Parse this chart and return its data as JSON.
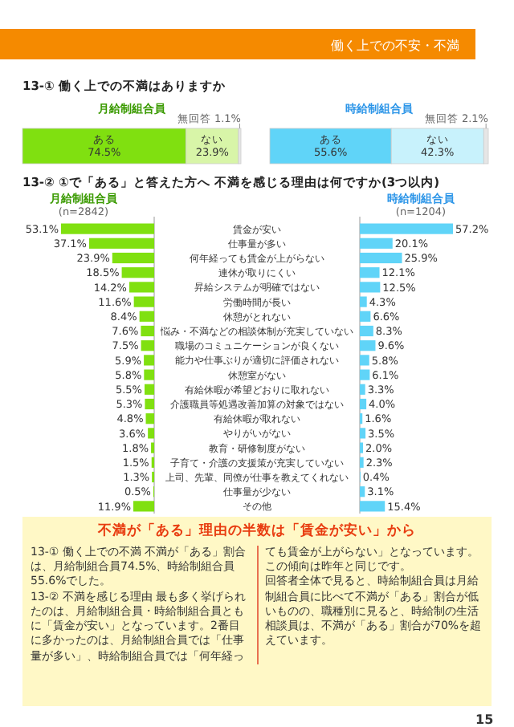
{
  "chart_data": [
    {
      "type": "other",
      "annotations": [
        "働く上での不安・不満"
      ]
    },
    {
      "type": "bar",
      "orientation": "horizontal",
      "stacked": true,
      "title": "月給制組合員",
      "annotations": [
        "13-① 働く上での不満はありますか"
      ],
      "categories": [
        null
      ],
      "series": [
        {
          "name": "ある",
          "color": "#80e010",
          "values": [
            74.5
          ],
          "value_labels": [
            "74.5%"
          ]
        },
        {
          "name": "ない",
          "color": "#d8f5a8",
          "values": [
            23.9
          ],
          "value_labels": [
            "23.9%"
          ]
        },
        {
          "name": "無回答",
          "color": "#e6e6e6",
          "values": [
            1.1
          ],
          "value_labels": [
            "1.1%"
          ]
        }
      ]
    },
    {
      "type": "bar",
      "orientation": "horizontal",
      "stacked": true,
      "title": "時給制組合員",
      "categories": [
        null
      ],
      "series": [
        {
          "name": "ある",
          "color": "#60d4f8",
          "values": [
            55.6
          ],
          "value_labels": [
            "55.6%"
          ]
        },
        {
          "name": "ない",
          "color": "#c8f2fc",
          "values": [
            42.3
          ],
          "value_labels": [
            "42.3%"
          ]
        },
        {
          "name": "無回答",
          "color": "#e6e6e6",
          "values": [
            2.1
          ],
          "value_labels": [
            "2.1%"
          ]
        }
      ]
    },
    {
      "type": "bar",
      "orientation": "horizontal",
      "title": "月給制組合員",
      "subtitle": "(n=2842)",
      "annotations": [
        "13-② ①で「ある」と答えた方へ 不満を感じる理由は何ですか(3つ以内)"
      ],
      "categories": [
        "賃金が安い",
        "仕事量が多い",
        "何年経っても賃金が上がらない",
        "連休が取りにくい",
        "昇給システムが明確ではない",
        "労働時間が長い",
        "休憩がとれない",
        "悩み・不満などの相談体制が充実していない",
        "職場のコミュニケーションが良くない",
        "能力や仕事ぶりが適切に評価されない",
        "休憩室がない",
        "有給休暇が希望どおりに取れない",
        "介護職員等処遇改善加算の対象ではない",
        "有給休暇が取れない",
        "やりがいがない",
        "教育・研修制度がない",
        "子育て・介護の支援策が充実していない",
        "上司、先輩、同僚が仕事を教えてくれない",
        "仕事量が少ない",
        "その他"
      ],
      "color": "#80e010",
      "values": [
        53.1,
        37.1,
        23.9,
        18.5,
        14.2,
        11.6,
        8.4,
        7.6,
        7.5,
        5.9,
        5.8,
        5.5,
        5.3,
        4.8,
        3.6,
        1.8,
        1.5,
        1.3,
        0.5,
        11.9
      ],
      "value_labels": [
        "53.1%",
        "37.1%",
        "23.9%",
        "18.5%",
        "14.2%",
        "11.6%",
        "8.4%",
        "7.6%",
        "7.5%",
        "5.9%",
        "5.8%",
        "5.5%",
        "5.3%",
        "4.8%",
        "3.6%",
        "1.8%",
        "1.5%",
        "1.3%",
        "0.5%",
        "11.9%"
      ]
    },
    {
      "type": "bar",
      "orientation": "horizontal",
      "title": "時給制組合員",
      "subtitle": "(n=1204)",
      "color": "#60d4f8",
      "values": [
        57.2,
        20.1,
        25.9,
        12.1,
        12.5,
        4.3,
        6.6,
        8.3,
        9.6,
        5.8,
        6.1,
        3.3,
        4.0,
        1.6,
        3.5,
        2.0,
        2.3,
        0.4,
        3.1,
        15.4
      ],
      "value_labels": [
        "57.2%",
        "20.1%",
        "25.9%",
        "12.1%",
        "12.5%",
        "4.3%",
        "6.6%",
        "8.3%",
        "9.6%",
        "5.8%",
        "6.1%",
        "3.3%",
        "4.0%",
        "1.6%",
        "3.5%",
        "2.0%",
        "2.3%",
        "0.4%",
        "3.1%",
        "15.4%"
      ]
    },
    {
      "type": "other",
      "title": "不満が「ある」理由の半数は「賃金が安い」から",
      "annotations": [
        "13-① 働く上での不満 不満が「ある」割合は、月給制組合員74.5%、時給制組合員55.6%でした。",
        "13-② 不満を感じる理由 最も多く挙げられたのは、月給制組合員・時給制組合員ともに「賃金が安い」となっています。2番目に多かったのは、月給制組合員では「仕事量が多い」、時給制組合員では「何年経っても賃金が上がらない」となっています。この傾向は昨年と同じです。",
        "回答者全体で見ると、時給制組合員は月給制組合員に比べて不満が「ある」割合が低いものの、職種別に見ると、時給制の生活相談員は、不満が「ある」割合が70%を超えています。",
        "15"
      ]
    }
  ]
}
